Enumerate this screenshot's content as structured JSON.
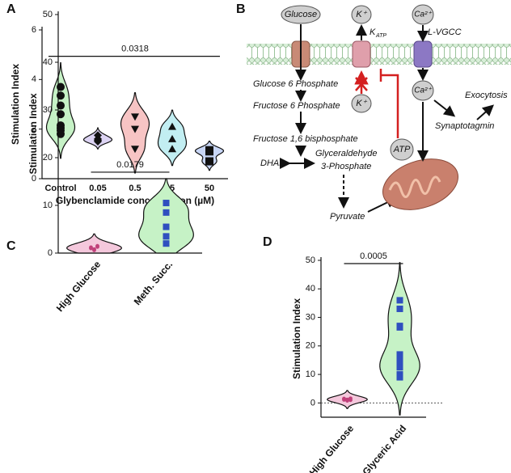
{
  "chart_data": [
    {
      "type": "violin",
      "panel": "A",
      "ylabel": "Stimulation Index",
      "xlabel": "Glybenclamide concentration (µM)",
      "categories": [
        "Control",
        "0.05",
        "0.5",
        "5",
        "50"
      ],
      "groups": [
        {
          "color": "#c6f2c6",
          "marker": "circle",
          "values": [
            3.7,
            3.35,
            2.95,
            2.6,
            2.15,
            2.05,
            1.95,
            1.8
          ]
        },
        {
          "color": "#ddd4f4",
          "marker": "diamond",
          "values": [
            1.75,
            1.6,
            1.55,
            1.5
          ]
        },
        {
          "color": "#f7c4c4",
          "marker": "triangle-down",
          "values": [
            2.5,
            2.0,
            1.2
          ]
        },
        {
          "color": "#c2eef2",
          "marker": "triangle-up",
          "values": [
            2.1,
            1.6,
            1.2
          ]
        },
        {
          "color": "#c8d6f6",
          "marker": "square",
          "values": [
            1.15,
            1.1,
            0.7
          ]
        }
      ],
      "annotation": "0.0318",
      "ylim": [
        0,
        6
      ],
      "yticks": [
        0,
        2,
        4,
        6
      ]
    },
    {
      "type": "violin",
      "panel": "C",
      "ylabel": "Stimulation Index",
      "categories": [
        "High Glucose",
        "Meth. Succ."
      ],
      "groups": [
        {
          "color": "#f4c8dc",
          "marker": "dot",
          "marker_color": "#c0407a",
          "values": [
            1.2,
            0.8,
            1.5,
            1.0,
            0.6,
            1.3
          ]
        },
        {
          "color": "#c6f2c6",
          "marker": "square",
          "marker_color": "#2f4fbf",
          "values": [
            10.5,
            8.5,
            5.5,
            3.5,
            2
          ]
        }
      ],
      "annotation": "0.0179",
      "ylim": [
        0,
        50
      ],
      "yticks": [
        0,
        10,
        20,
        30,
        40,
        50
      ]
    },
    {
      "type": "violin",
      "panel": "D",
      "ylabel": "Stimulation  Index",
      "categories": [
        "High Glucose",
        "Glyceric Acid"
      ],
      "groups": [
        {
          "color": "#f4c8dc",
          "marker": "dot",
          "marker_color": "#c0407a",
          "values": [
            1.5,
            1.2,
            1.0,
            1.4,
            0.8,
            1.6,
            1.1
          ]
        },
        {
          "color": "#c6f2c6",
          "marker": "square",
          "marker_color": "#2f4fbf",
          "values": [
            36,
            33,
            27,
            26.5,
            17,
            15,
            13.5,
            12.5,
            10,
            9
          ]
        }
      ],
      "annotation": "0.0005",
      "zero_line": true,
      "ylim": [
        -5,
        50
      ],
      "yticks": [
        0,
        10,
        20,
        30,
        40,
        50
      ]
    }
  ],
  "diagram": {
    "panel": "B",
    "glucose": "Glucose",
    "k_out": "K⁺",
    "ca_out": "Ca²⁺",
    "katp_main": "K",
    "katp_sub": "ATP",
    "lvgcc": "L-VGCC",
    "g6p": "Glucose 6 Phosphate",
    "f6p": "Fructose 6 Phosphate",
    "f16bp": "Fructose 1,6 bisphosphate",
    "dhap": "DHAP",
    "gap1": "Glyceraldehyde",
    "gap2": "3-Phosphate",
    "pyruvate": "Pyruvate",
    "atp": "ATP",
    "k_in": "K⁺",
    "ca_in": "Ca²⁺",
    "exocytosis": "Exocytosis",
    "synaptotagmin": "Synaptotagmin"
  }
}
